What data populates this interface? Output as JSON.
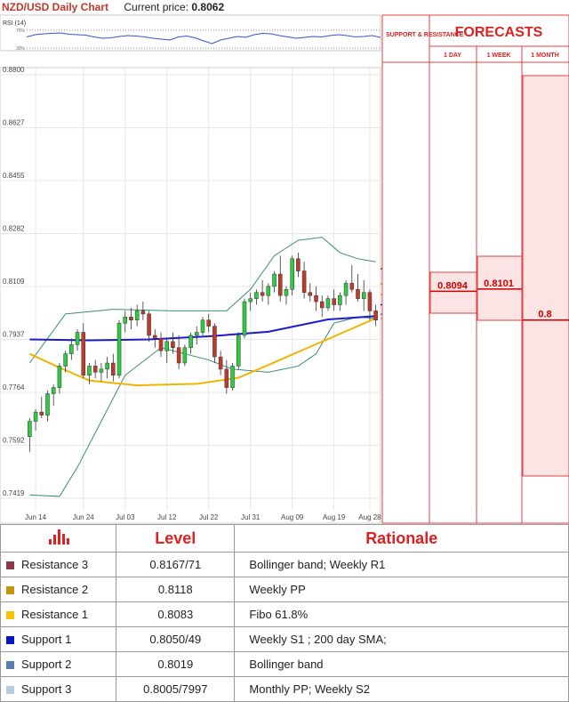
{
  "header": {
    "title": "NZD/USD Daily Chart",
    "price_label": "Current price:",
    "price_value": "0.8062"
  },
  "rsi": {
    "label": "RSI (14)",
    "upper": "70%",
    "lower": "30%"
  },
  "forecast_panel": {
    "support_resistance": "SUPPORT & RESISTANCE",
    "title": "FORECASTS",
    "cols": [
      "1 DAY",
      "1 WEEK",
      "1 MONTH"
    ],
    "day_value": "0.8094",
    "week_value": "0.8101",
    "month_value": "0.8"
  },
  "levels_on_chart": [
    {
      "value": "0.8167",
      "price": 0.8167,
      "color": "#7b2d3b"
    },
    {
      "value": "0.8118",
      "price": 0.8118,
      "color": "#d4a017"
    },
    {
      "value": "0.8083",
      "price": 0.8083,
      "color": "#e8b020"
    },
    {
      "value": "0.8050",
      "price": 0.805,
      "color": "#1a1aa0"
    },
    {
      "value": "0.8019",
      "price": 0.8019,
      "color": "#4a6fa5"
    },
    {
      "value": "0.8005",
      "price": 0.8005,
      "color": "#a9c4e0"
    }
  ],
  "colors": {
    "bull": "#2ecc40",
    "bear": "#c0392b",
    "sma200": "#1a1ad0",
    "sma50": "#f0b400",
    "boll": "#3a8a7a"
  },
  "chart_data": {
    "type": "candlestick",
    "title": "NZD/USD Daily Chart",
    "ylim": [
      0.7419,
      0.88
    ],
    "y_ticks": [
      "0.8800",
      "0.8627",
      "0.8455",
      "0.8282",
      "0.8109",
      "0.7937",
      "0.7764",
      "0.7592",
      "0.7419"
    ],
    "x_ticks": [
      "Jun 14",
      "Jun 24",
      "Jul 03",
      "Jul 12",
      "Jul 22",
      "Jul 31",
      "Aug 09",
      "Aug 19",
      "Aug 28"
    ],
    "candles": [
      [
        0.762,
        0.768,
        0.757,
        0.767
      ],
      [
        0.767,
        0.771,
        0.764,
        0.77
      ],
      [
        0.77,
        0.775,
        0.768,
        0.769
      ],
      [
        0.769,
        0.777,
        0.767,
        0.776
      ],
      [
        0.776,
        0.779,
        0.772,
        0.778
      ],
      [
        0.778,
        0.786,
        0.776,
        0.785
      ],
      [
        0.785,
        0.79,
        0.783,
        0.789
      ],
      [
        0.789,
        0.794,
        0.787,
        0.792
      ],
      [
        0.792,
        0.797,
        0.79,
        0.796
      ],
      [
        0.796,
        0.799,
        0.781,
        0.782
      ],
      [
        0.782,
        0.786,
        0.779,
        0.785
      ],
      [
        0.785,
        0.787,
        0.781,
        0.783
      ],
      [
        0.783,
        0.786,
        0.78,
        0.784
      ],
      [
        0.784,
        0.788,
        0.781,
        0.786
      ],
      [
        0.786,
        0.789,
        0.78,
        0.782
      ],
      [
        0.782,
        0.8,
        0.781,
        0.799
      ],
      [
        0.799,
        0.803,
        0.796,
        0.801
      ],
      [
        0.801,
        0.804,
        0.797,
        0.8
      ],
      [
        0.8,
        0.805,
        0.798,
        0.803
      ],
      [
        0.803,
        0.806,
        0.8,
        0.802
      ],
      [
        0.802,
        0.803,
        0.793,
        0.795
      ],
      [
        0.795,
        0.797,
        0.791,
        0.794
      ],
      [
        0.794,
        0.796,
        0.788,
        0.79
      ],
      [
        0.79,
        0.794,
        0.786,
        0.793
      ],
      [
        0.793,
        0.796,
        0.789,
        0.791
      ],
      [
        0.791,
        0.795,
        0.784,
        0.786
      ],
      [
        0.786,
        0.792,
        0.785,
        0.791
      ],
      [
        0.791,
        0.796,
        0.789,
        0.795
      ],
      [
        0.795,
        0.798,
        0.792,
        0.796
      ],
      [
        0.796,
        0.801,
        0.795,
        0.8
      ],
      [
        0.8,
        0.802,
        0.796,
        0.798
      ],
      [
        0.798,
        0.799,
        0.786,
        0.788
      ],
      [
        0.788,
        0.79,
        0.782,
        0.784
      ],
      [
        0.784,
        0.787,
        0.776,
        0.778
      ],
      [
        0.778,
        0.786,
        0.777,
        0.785
      ],
      [
        0.785,
        0.796,
        0.784,
        0.795
      ],
      [
        0.795,
        0.807,
        0.794,
        0.806
      ],
      [
        0.806,
        0.809,
        0.803,
        0.807
      ],
      [
        0.807,
        0.81,
        0.805,
        0.809
      ],
      [
        0.809,
        0.813,
        0.806,
        0.808
      ],
      [
        0.808,
        0.812,
        0.805,
        0.811
      ],
      [
        0.811,
        0.816,
        0.809,
        0.815
      ],
      [
        0.815,
        0.821,
        0.806,
        0.808
      ],
      [
        0.808,
        0.811,
        0.805,
        0.81
      ],
      [
        0.81,
        0.821,
        0.808,
        0.82
      ],
      [
        0.82,
        0.822,
        0.814,
        0.816
      ],
      [
        0.816,
        0.819,
        0.807,
        0.809
      ],
      [
        0.809,
        0.812,
        0.806,
        0.808
      ],
      [
        0.808,
        0.811,
        0.803,
        0.806
      ],
      [
        0.806,
        0.808,
        0.801,
        0.804
      ],
      [
        0.804,
        0.808,
        0.803,
        0.807
      ],
      [
        0.807,
        0.81,
        0.803,
        0.805
      ],
      [
        0.805,
        0.809,
        0.803,
        0.808
      ],
      [
        0.808,
        0.813,
        0.805,
        0.812
      ],
      [
        0.812,
        0.818,
        0.809,
        0.81
      ],
      [
        0.81,
        0.815,
        0.806,
        0.807
      ],
      [
        0.807,
        0.813,
        0.803,
        0.809
      ],
      [
        0.809,
        0.81,
        0.8,
        0.803
      ],
      [
        0.803,
        0.805,
        0.798,
        0.8
      ]
    ],
    "sma200": [
      [
        0,
        0.7937
      ],
      [
        10,
        0.7934
      ],
      [
        20,
        0.7937
      ],
      [
        30,
        0.7947
      ],
      [
        40,
        0.7962
      ],
      [
        50,
        0.8002
      ],
      [
        58,
        0.8013
      ]
    ],
    "sma50": [
      [
        0,
        0.789
      ],
      [
        5,
        0.7845
      ],
      [
        10,
        0.7803
      ],
      [
        18,
        0.7787
      ],
      [
        28,
        0.7792
      ],
      [
        35,
        0.7812
      ],
      [
        41,
        0.7862
      ],
      [
        47,
        0.7913
      ],
      [
        52,
        0.7955
      ],
      [
        58,
        0.8006
      ]
    ],
    "boll_upper": [
      [
        0,
        0.786
      ],
      [
        6,
        0.802
      ],
      [
        14,
        0.8035
      ],
      [
        24,
        0.803
      ],
      [
        33,
        0.803
      ],
      [
        37,
        0.81
      ],
      [
        41,
        0.821
      ],
      [
        45,
        0.826
      ],
      [
        49,
        0.827
      ],
      [
        52,
        0.822
      ],
      [
        55,
        0.82
      ],
      [
        58,
        0.819
      ]
    ],
    "boll_lower": [
      [
        0,
        0.743
      ],
      [
        5,
        0.7425
      ],
      [
        8,
        0.752
      ],
      [
        12,
        0.767
      ],
      [
        16,
        0.782
      ],
      [
        22,
        0.791
      ],
      [
        30,
        0.787
      ],
      [
        34,
        0.784
      ],
      [
        40,
        0.783
      ],
      [
        45,
        0.785
      ],
      [
        48,
        0.789
      ],
      [
        51,
        0.799
      ],
      [
        55,
        0.801
      ],
      [
        58,
        0.8005
      ]
    ],
    "rsi": [
      55,
      60,
      62,
      63,
      64,
      61,
      60,
      59,
      55,
      52,
      53,
      56,
      58,
      57,
      55,
      52,
      50,
      48,
      55,
      57,
      53,
      46,
      40,
      48,
      52,
      56,
      54,
      60,
      63,
      62,
      58,
      55,
      52,
      54,
      56,
      55,
      58,
      60,
      58,
      55,
      56,
      58,
      54
    ]
  },
  "table": {
    "head_level": "Level",
    "head_rationale": "Rationale",
    "rows": [
      {
        "name": "Resistance 3",
        "level": "0.8167/71",
        "rationale": "Bollinger band; Weekly R1",
        "color": "#8b3a45"
      },
      {
        "name": "Resistance 2",
        "level": "0.8118",
        "rationale": "Weekly PP",
        "color": "#c8960c"
      },
      {
        "name": "Resistance 1",
        "level": "0.8083",
        "rationale": "Fibo 61.8%",
        "color": "#f5c400"
      },
      {
        "name": "Support 1",
        "level": "0.8050/49",
        "rationale": "Weekly S1 ; 200 day SMA;",
        "color": "#0a14c8"
      },
      {
        "name": "Support 2",
        "level": "0.8019",
        "rationale": "Bollinger band",
        "color": "#5a7fb0"
      },
      {
        "name": "Support 3",
        "level": "0.8005/7997",
        "rationale": "Monthly PP; Weekly S2",
        "color": "#b8cde0"
      }
    ]
  }
}
